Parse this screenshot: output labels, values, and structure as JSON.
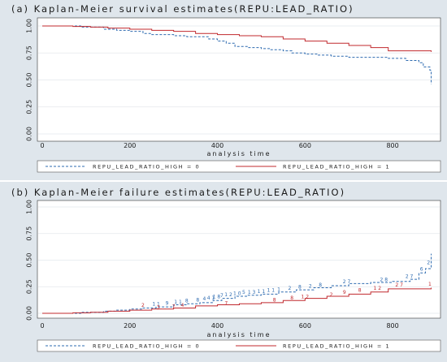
{
  "colors": {
    "group0": "#2e6bb0",
    "group1": "#c0282d",
    "background": "#dfe6ec",
    "plot": "#ffffff"
  },
  "chart_data": [
    {
      "type": "line",
      "title": "(a) Kaplan-Meier survival estimates(REPU:LEAD_RATIO)",
      "xlabel": "analysis time",
      "ylabel": "",
      "xlim": [
        0,
        900
      ],
      "ylim": [
        0,
        1
      ],
      "xticks": [
        "0",
        "200",
        "400",
        "600",
        "800"
      ],
      "yticks": [
        "0.00",
        "0.25",
        "0.50",
        "0.75",
        "1.00"
      ],
      "grid": true,
      "legend_position": "bottom",
      "series": [
        {
          "name": "REPU_LEAD_RATIO_HIGH = 0",
          "style": "dashed",
          "points": [
            [
              0,
              1.0
            ],
            [
              90,
              0.99
            ],
            [
              140,
              0.97
            ],
            [
              170,
              0.96
            ],
            [
              200,
              0.95
            ],
            [
              230,
              0.93
            ],
            [
              250,
              0.92
            ],
            [
              300,
              0.91
            ],
            [
              330,
              0.9
            ],
            [
              360,
              0.9
            ],
            [
              380,
              0.88
            ],
            [
              400,
              0.86
            ],
            [
              420,
              0.84
            ],
            [
              440,
              0.81
            ],
            [
              470,
              0.8
            ],
            [
              500,
              0.79
            ],
            [
              520,
              0.78
            ],
            [
              550,
              0.77
            ],
            [
              570,
              0.75
            ],
            [
              600,
              0.74
            ],
            [
              630,
              0.73
            ],
            [
              660,
              0.72
            ],
            [
              700,
              0.71
            ],
            [
              740,
              0.71
            ],
            [
              790,
              0.7
            ],
            [
              830,
              0.68
            ],
            [
              860,
              0.66
            ],
            [
              870,
              0.62
            ],
            [
              885,
              0.59
            ],
            [
              888,
              0.46
            ]
          ]
        },
        {
          "name": "REPU_LEAD_RATIO_HIGH = 1",
          "style": "solid",
          "points": [
            [
              0,
              1.0
            ],
            [
              70,
              0.995
            ],
            [
              110,
              0.99
            ],
            [
              150,
              0.98
            ],
            [
              200,
              0.97
            ],
            [
              250,
              0.96
            ],
            [
              300,
              0.95
            ],
            [
              350,
              0.93
            ],
            [
              400,
              0.92
            ],
            [
              450,
              0.91
            ],
            [
              500,
              0.9
            ],
            [
              550,
              0.88
            ],
            [
              600,
              0.86
            ],
            [
              650,
              0.84
            ],
            [
              700,
              0.82
            ],
            [
              750,
              0.8
            ],
            [
              790,
              0.77
            ],
            [
              888,
              0.76
            ]
          ]
        }
      ]
    },
    {
      "type": "line",
      "title": "(b) Kaplan-Meier failure estimates(REPU:LEAD_RATIO)",
      "xlabel": "analysis time",
      "ylabel": "",
      "xlim": [
        0,
        900
      ],
      "ylim": [
        0,
        1
      ],
      "xticks": [
        "0",
        "200",
        "400",
        "600",
        "800"
      ],
      "yticks": [
        "0.00",
        "0.25",
        "0.50",
        "0.75",
        "1.00"
      ],
      "grid": true,
      "legend_position": "bottom",
      "series": [
        {
          "name": "REPU_LEAD_RATIO_HIGH = 0",
          "style": "dashed",
          "points": [
            [
              0,
              0.0
            ],
            [
              90,
              0.01
            ],
            [
              140,
              0.02
            ],
            [
              170,
              0.03
            ],
            [
              200,
              0.04
            ],
            [
              230,
              0.05
            ],
            [
              260,
              0.06
            ],
            [
              300,
              0.08
            ],
            [
              330,
              0.09
            ],
            [
              360,
              0.1
            ],
            [
              390,
              0.12
            ],
            [
              410,
              0.14
            ],
            [
              440,
              0.16
            ],
            [
              470,
              0.17
            ],
            [
              500,
              0.18
            ],
            [
              540,
              0.2
            ],
            [
              580,
              0.22
            ],
            [
              620,
              0.24
            ],
            [
              660,
              0.26
            ],
            [
              700,
              0.28
            ],
            [
              750,
              0.29
            ],
            [
              800,
              0.3
            ],
            [
              840,
              0.32
            ],
            [
              860,
              0.38
            ],
            [
              875,
              0.42
            ],
            [
              888,
              0.56
            ]
          ]
        },
        {
          "name": "REPU_LEAD_RATIO_HIGH = 1",
          "style": "solid",
          "points": [
            [
              0,
              0.0
            ],
            [
              70,
              0.005
            ],
            [
              110,
              0.01
            ],
            [
              150,
              0.02
            ],
            [
              200,
              0.03
            ],
            [
              250,
              0.04
            ],
            [
              300,
              0.05
            ],
            [
              350,
              0.07
            ],
            [
              400,
              0.08
            ],
            [
              450,
              0.09
            ],
            [
              500,
              0.1
            ],
            [
              550,
              0.12
            ],
            [
              600,
              0.14
            ],
            [
              650,
              0.16
            ],
            [
              700,
              0.18
            ],
            [
              750,
              0.2
            ],
            [
              790,
              0.23
            ],
            [
              888,
              0.24
            ]
          ]
        }
      ],
      "annotations": [
        {
          "text": "1 1",
          "x": 260,
          "y": 0.06,
          "series": 0
        },
        {
          "text": "9",
          "x": 285,
          "y": 0.07,
          "series": 0
        },
        {
          "text": "1 1",
          "x": 310,
          "y": 0.08,
          "series": 0
        },
        {
          "text": "8",
          "x": 330,
          "y": 0.09,
          "series": 0
        },
        {
          "text": "8",
          "x": 355,
          "y": 0.1,
          "series": 0
        },
        {
          "text": "4",
          "x": 370,
          "y": 0.11,
          "series": 0
        },
        {
          "text": "4 1",
          "x": 385,
          "y": 0.12,
          "series": 0
        },
        {
          "text": "1 8",
          "x": 398,
          "y": 0.13,
          "series": 0
        },
        {
          "text": "7",
          "x": 410,
          "y": 0.14,
          "series": 0
        },
        {
          "text": "1 2",
          "x": 425,
          "y": 0.15,
          "series": 0
        },
        {
          "text": "1 0",
          "x": 445,
          "y": 0.16,
          "series": 0
        },
        {
          "text": "5",
          "x": 460,
          "y": 0.17,
          "series": 0
        },
        {
          "text": "1 3",
          "x": 478,
          "y": 0.17,
          "series": 0
        },
        {
          "text": "1 1",
          "x": 500,
          "y": 0.18,
          "series": 0
        },
        {
          "text": "1 1",
          "x": 522,
          "y": 0.19,
          "series": 0
        },
        {
          "text": "1",
          "x": 540,
          "y": 0.2,
          "series": 0
        },
        {
          "text": "2",
          "x": 565,
          "y": 0.21,
          "series": 0
        },
        {
          "text": "8",
          "x": 588,
          "y": 0.22,
          "series": 0
        },
        {
          "text": "2",
          "x": 612,
          "y": 0.23,
          "series": 0
        },
        {
          "text": "8",
          "x": 635,
          "y": 0.24,
          "series": 0
        },
        {
          "text": "2 7",
          "x": 695,
          "y": 0.27,
          "series": 0
        },
        {
          "text": "2 8",
          "x": 780,
          "y": 0.29,
          "series": 0
        },
        {
          "text": "2 7",
          "x": 838,
          "y": 0.32,
          "series": 0
        },
        {
          "text": "6",
          "x": 866,
          "y": 0.39,
          "series": 0
        },
        {
          "text": "2",
          "x": 882,
          "y": 0.45,
          "series": 0
        },
        {
          "text": "2",
          "x": 230,
          "y": 0.05,
          "series": 1
        },
        {
          "text": "3",
          "x": 265,
          "y": 0.03,
          "series": 1
        },
        {
          "text": "7",
          "x": 300,
          "y": 0.04,
          "series": 1
        },
        {
          "text": "4",
          "x": 320,
          "y": 0.05,
          "series": 1
        },
        {
          "text": "7",
          "x": 420,
          "y": 0.07,
          "series": 1
        },
        {
          "text": "8",
          "x": 530,
          "y": 0.1,
          "series": 1
        },
        {
          "text": "8",
          "x": 570,
          "y": 0.12,
          "series": 1
        },
        {
          "text": "1 2",
          "x": 600,
          "y": 0.13,
          "series": 1
        },
        {
          "text": "2",
          "x": 660,
          "y": 0.15,
          "series": 1
        },
        {
          "text": "9",
          "x": 690,
          "y": 0.17,
          "series": 1
        },
        {
          "text": "8",
          "x": 725,
          "y": 0.19,
          "series": 1
        },
        {
          "text": "1 2",
          "x": 765,
          "y": 0.21,
          "series": 1
        },
        {
          "text": "2 7",
          "x": 815,
          "y": 0.24,
          "series": 1
        },
        {
          "text": "1",
          "x": 885,
          "y": 0.25,
          "series": 1
        }
      ]
    }
  ]
}
